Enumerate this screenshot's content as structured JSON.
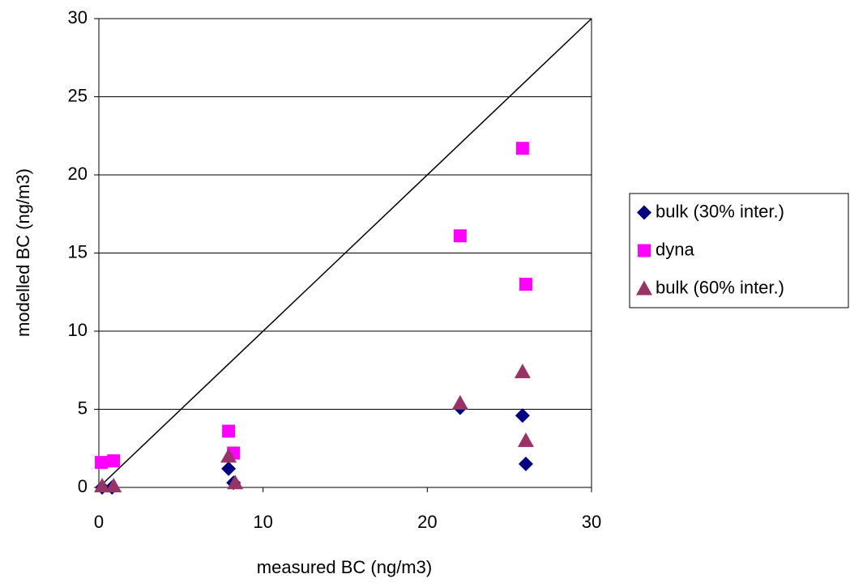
{
  "chart_data": {
    "type": "scatter",
    "x_label": "measured BC (ng/m3)",
    "y_label": "modelled BC (ng/m3)",
    "xlim": [
      0,
      30
    ],
    "ylim": [
      0,
      30
    ],
    "xticks": [
      0,
      10,
      20,
      30
    ],
    "yticks": [
      0,
      5,
      10,
      15,
      20,
      25,
      30
    ],
    "grid": true,
    "legend": "right",
    "series": [
      {
        "name": "bulk (30% inter.)",
        "color": "#000080",
        "marker": "diamond",
        "x": [
          0.2,
          0.8,
          7.9,
          8.2,
          22,
          25.8,
          26
        ],
        "values": [
          0,
          0,
          1.2,
          0.3,
          5.1,
          4.6,
          1.5
        ]
      },
      {
        "name": "dyna",
        "color": "#ff00ff",
        "marker": "square",
        "x": [
          0.15,
          0.9,
          7.9,
          8.2,
          22,
          25.8,
          26
        ],
        "values": [
          1.6,
          1.7,
          3.6,
          2.2,
          16.1,
          21.7,
          13
        ]
      },
      {
        "name": "bulk (60% inter.)",
        "color": "#993366",
        "marker": "triangle",
        "x": [
          0.2,
          0.9,
          7.9,
          8.3,
          22,
          25.8,
          26
        ],
        "values": [
          0.1,
          0.1,
          2,
          0.3,
          5.4,
          7.4,
          3
        ]
      }
    ]
  }
}
